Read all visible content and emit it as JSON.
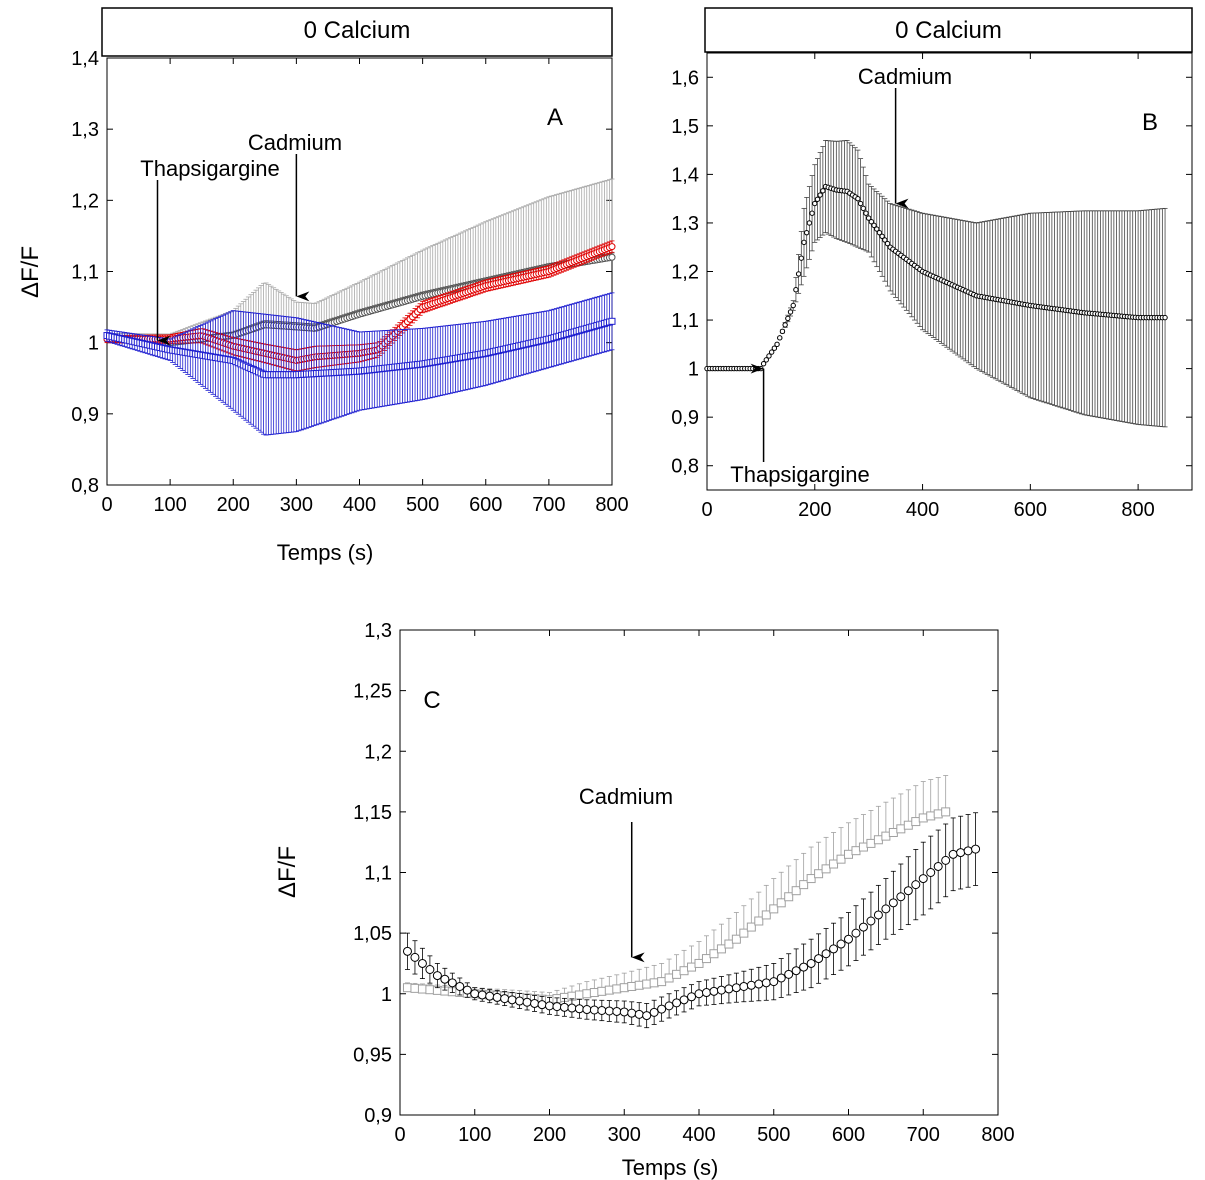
{
  "chart_data": [
    {
      "panel": "A",
      "type": "scatter",
      "panel_label": "A",
      "header": "0 Calcium",
      "xlabel": "Temps (s)",
      "ylabel": "ΔF/F",
      "xlim": [
        0,
        800
      ],
      "ylim": [
        0.8,
        1.4
      ],
      "xticks": [
        "0",
        "100",
        "200",
        "300",
        "400",
        "500",
        "600",
        "700",
        "800"
      ],
      "yticks": [
        "0,8",
        "0,9",
        "1",
        "1,1",
        "1,2",
        "1,3",
        "1,4"
      ],
      "annotations": [
        {
          "text": "Thapsigargine",
          "x": 80,
          "arrow_tip_y": 1.003
        },
        {
          "text": "Cadmium",
          "x": 300,
          "arrow_tip_y": 1.065
        }
      ],
      "colors": {
        "gray": "#a8a8a8",
        "dark": "#555555",
        "red": "#e00000",
        "blue": "#1f1fd0"
      },
      "series": [
        {
          "color_key": "gray",
          "marker": "circle",
          "errorbar": "up",
          "x": [
            0,
            100,
            200,
            250,
            300,
            330,
            400,
            500,
            600,
            700,
            800
          ],
          "y": [
            1.005,
            1.0,
            1.01,
            1.025,
            1.022,
            1.02,
            1.04,
            1.065,
            1.085,
            1.105,
            1.12
          ],
          "err": [
            0.008,
            0.012,
            0.035,
            0.06,
            0.035,
            0.035,
            0.045,
            0.065,
            0.085,
            0.1,
            0.11
          ]
        },
        {
          "color_key": "dark",
          "marker": "circle",
          "errorbar": "up",
          "x": [
            0,
            100,
            200,
            250,
            300,
            330,
            400,
            500,
            600,
            700,
            800
          ],
          "y": [
            1.005,
            1.0,
            1.01,
            1.025,
            1.022,
            1.02,
            1.04,
            1.065,
            1.085,
            1.105,
            1.12
          ],
          "err": [
            0.004,
            0.004,
            0.005,
            0.006,
            0.006,
            0.006,
            0.006,
            0.006,
            0.006,
            0.006,
            0.006
          ]
        },
        {
          "color_key": "red",
          "marker": "circle",
          "errorbar": "both",
          "x": [
            0,
            100,
            150,
            200,
            250,
            300,
            330,
            400,
            430,
            500,
            600,
            700,
            800
          ],
          "y": [
            1.005,
            1.005,
            1.01,
            0.995,
            0.985,
            0.975,
            0.98,
            0.985,
            0.99,
            1.05,
            1.08,
            1.1,
            1.135
          ],
          "err": [
            0.005,
            0.006,
            0.01,
            0.012,
            0.013,
            0.015,
            0.015,
            0.012,
            0.01,
            0.008,
            0.008,
            0.008,
            0.008
          ]
        },
        {
          "color_key": "blue",
          "marker": "square",
          "errorbar": "both",
          "x": [
            0,
            100,
            200,
            250,
            300,
            400,
            500,
            600,
            700,
            800
          ],
          "y": [
            1.01,
            0.99,
            0.975,
            0.955,
            0.955,
            0.96,
            0.97,
            0.985,
            1.005,
            1.03
          ],
          "err": [
            0.008,
            0.015,
            0.07,
            0.085,
            0.08,
            0.055,
            0.05,
            0.045,
            0.04,
            0.04
          ]
        }
      ]
    },
    {
      "panel": "B",
      "type": "scatter",
      "panel_label": "B",
      "header": "0 Calcium",
      "xlabel": "",
      "ylabel": "",
      "xlim": [
        0,
        900
      ],
      "ylim": [
        0.75,
        1.65
      ],
      "xticks": [
        "0",
        "200",
        "400",
        "600",
        "800"
      ],
      "yticks": [
        "0,8",
        "0,9",
        "1",
        "1,1",
        "1,2",
        "1,3",
        "1,4",
        "1,5",
        "1,6"
      ],
      "annotations": [
        {
          "text": "Thapsigargine",
          "x": 105,
          "arrow_tip_y": 1.0
        },
        {
          "text": "Cadmium",
          "x": 350,
          "arrow_tip_y": 1.34
        }
      ],
      "colors": {
        "dark": "#000000",
        "bar": "#444444"
      },
      "series": [
        {
          "color_key": "dark",
          "marker": "circle",
          "errorbar": "both",
          "x": [
            0,
            100,
            105,
            130,
            160,
            180,
            200,
            220,
            240,
            260,
            280,
            300,
            340,
            400,
            500,
            600,
            700,
            800,
            850
          ],
          "y": [
            1.0,
            1.0,
            1.01,
            1.05,
            1.13,
            1.26,
            1.34,
            1.375,
            1.368,
            1.365,
            1.35,
            1.31,
            1.25,
            1.2,
            1.15,
            1.13,
            1.115,
            1.105,
            1.105
          ],
          "err": [
            0.0,
            0.0,
            0.0,
            0.0,
            0.01,
            0.07,
            0.08,
            0.095,
            0.1,
            0.105,
            0.1,
            0.07,
            0.09,
            0.12,
            0.15,
            0.19,
            0.21,
            0.22,
            0.225
          ]
        }
      ]
    },
    {
      "panel": "C",
      "type": "scatter",
      "panel_label": "C",
      "header": "",
      "xlabel": "Temps (s)",
      "ylabel": "ΔF/F",
      "xlim": [
        0,
        800
      ],
      "ylim": [
        0.9,
        1.3
      ],
      "xticks": [
        "0",
        "100",
        "200",
        "300",
        "400",
        "500",
        "600",
        "700",
        "800"
      ],
      "yticks": [
        "0,9",
        "0,95",
        "1",
        "1,05",
        "1,1",
        "1,15",
        "1,2",
        "1,25",
        "1,3"
      ],
      "annotations": [
        {
          "text": "Cadmium",
          "x": 310,
          "arrow_tip_y": 1.03
        }
      ],
      "colors": {
        "gray": "#a0a0a0",
        "dark": "#000000"
      },
      "series": [
        {
          "color_key": "gray",
          "marker": "square",
          "errorbar": "up",
          "x": [
            10,
            100,
            200,
            250,
            300,
            350,
            400,
            450,
            500,
            550,
            600,
            650,
            700,
            730
          ],
          "y": [
            1.005,
            1.0,
            0.995,
            1.0,
            1.005,
            1.01,
            1.025,
            1.045,
            1.07,
            1.095,
            1.115,
            1.13,
            1.145,
            1.15
          ],
          "err": [
            0.004,
            0.005,
            0.006,
            0.01,
            0.012,
            0.015,
            0.018,
            0.022,
            0.025,
            0.026,
            0.026,
            0.028,
            0.03,
            0.03
          ]
        },
        {
          "color_key": "dark",
          "marker": "circle",
          "errorbar": "both",
          "x": [
            10,
            50,
            100,
            150,
            200,
            250,
            300,
            330,
            360,
            400,
            450,
            500,
            550,
            600,
            650,
            700,
            740,
            775
          ],
          "y": [
            1.035,
            1.015,
            1.0,
            0.995,
            0.99,
            0.987,
            0.985,
            0.982,
            0.99,
            1.0,
            1.005,
            1.01,
            1.025,
            1.045,
            1.07,
            1.095,
            1.115,
            1.12
          ],
          "err": [
            0.015,
            0.01,
            0.005,
            0.006,
            0.007,
            0.008,
            0.009,
            0.01,
            0.01,
            0.01,
            0.012,
            0.015,
            0.02,
            0.022,
            0.025,
            0.03,
            0.03,
            0.03
          ]
        }
      ]
    }
  ]
}
